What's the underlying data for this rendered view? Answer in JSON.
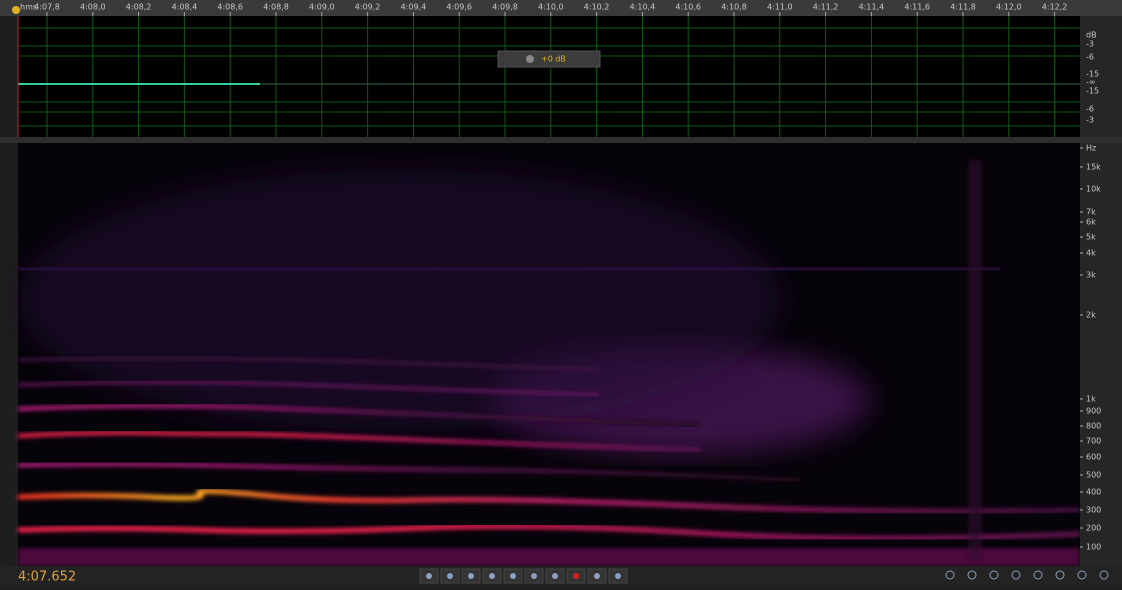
{
  "ruler": {
    "unit": "hms",
    "labels": [
      "4:07,8",
      "4:08,0",
      "4:08,2",
      "4:08,4",
      "4:08,6",
      "4:08,8",
      "4:09,0",
      "4:09,2",
      "4:09,4",
      "4:09,6",
      "4:09,8",
      "4:10,0",
      "4:10,2",
      "4:10,4",
      "4:10,6",
      "4:10,8",
      "4:11,0",
      "4:11,2",
      "4:11,4",
      "4:11,6",
      "4:11,8",
      "4:12,0",
      "4:12,2"
    ]
  },
  "waveform": {
    "gain": "+0 dB",
    "db_labels": [
      "dB",
      "-3",
      "-6",
      "-15",
      "-∞",
      "-15",
      "-6",
      "-3"
    ]
  },
  "spectrogram": {
    "hz_labels": [
      "Hz",
      "15k",
      "10k",
      "7k",
      "6k",
      "5k",
      "4k",
      "3k",
      "2k",
      "1k",
      "900",
      "800",
      "700",
      "600",
      "500",
      "400",
      "300",
      "200",
      "100"
    ]
  },
  "transport": {
    "current_time": "4:07.652"
  }
}
